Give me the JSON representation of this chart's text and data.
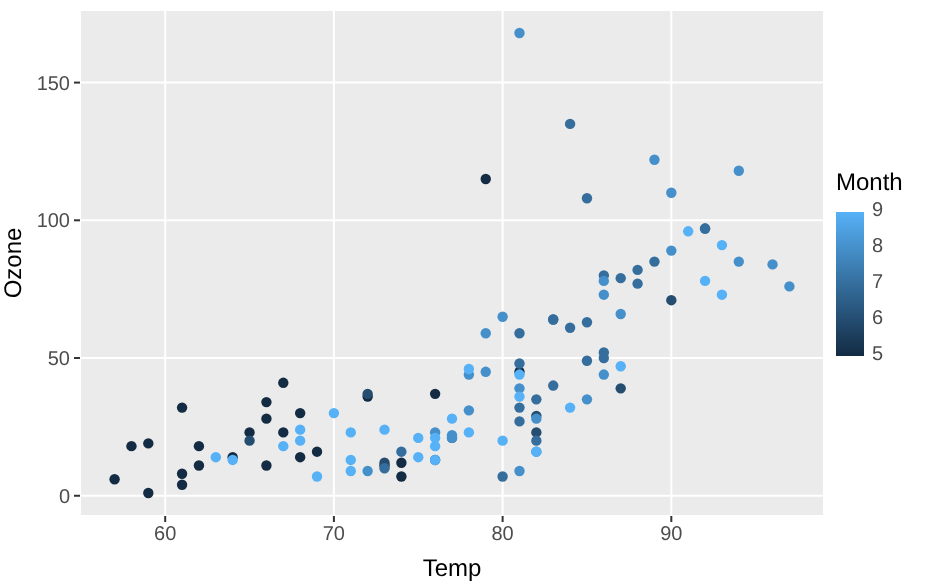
{
  "chart_data": {
    "type": "scatter",
    "xlabel": "Temp",
    "ylabel": "Ozone",
    "clabel": "Month",
    "x": [
      67,
      72,
      74,
      62,
      66,
      65,
      59,
      61,
      74,
      69,
      66,
      68,
      58,
      64,
      66,
      57,
      68,
      62,
      59,
      73,
      61,
      61,
      67,
      81,
      79,
      76,
      82,
      90,
      87,
      82,
      77,
      72,
      65,
      73,
      76,
      84,
      85,
      81,
      83,
      83,
      88,
      92,
      92,
      89,
      73,
      81,
      80,
      81,
      82,
      84,
      87,
      85,
      74,
      86,
      85,
      82,
      86,
      88,
      86,
      83,
      81,
      81,
      81,
      82,
      86,
      85,
      87,
      89,
      90,
      90,
      86,
      82,
      80,
      77,
      79,
      76,
      78,
      78,
      77,
      72,
      79,
      81,
      86,
      97,
      94,
      96,
      94,
      91,
      92,
      93,
      93,
      87,
      84,
      80,
      78,
      75,
      73,
      81,
      76,
      77,
      71,
      71,
      78,
      67,
      76,
      68,
      82,
      64,
      71,
      81,
      69,
      63,
      70,
      75,
      76,
      68
    ],
    "values": [
      41,
      36,
      12,
      18,
      28,
      23,
      19,
      8,
      7,
      16,
      11,
      14,
      18,
      14,
      34,
      6,
      30,
      11,
      1,
      11,
      4,
      32,
      23,
      45,
      115,
      37,
      29,
      71,
      39,
      23,
      21,
      37,
      20,
      12,
      13,
      135,
      49,
      32,
      64,
      40,
      77,
      97,
      97,
      85,
      10,
      27,
      7,
      48,
      35,
      61,
      79,
      63,
      16,
      80,
      108,
      20,
      52,
      82,
      50,
      64,
      59,
      39,
      9,
      16,
      78,
      35,
      66,
      122,
      89,
      110,
      44,
      28,
      65,
      22,
      59,
      23,
      31,
      44,
      21,
      9,
      45,
      168,
      73,
      76,
      118,
      84,
      85,
      96,
      78,
      73,
      91,
      47,
      32,
      20,
      23,
      21,
      24,
      44,
      21,
      28,
      9,
      13,
      46,
      18,
      13,
      24,
      16,
      13,
      23,
      36,
      7,
      14,
      30,
      14,
      18,
      20
    ],
    "cvalues": [
      5,
      5,
      5,
      5,
      5,
      5,
      5,
      5,
      5,
      5,
      5,
      5,
      5,
      5,
      5,
      5,
      5,
      5,
      5,
      5,
      5,
      5,
      5,
      5,
      5,
      5,
      6,
      6,
      6,
      6,
      6,
      6,
      6,
      6,
      6,
      7,
      7,
      7,
      7,
      7,
      7,
      7,
      7,
      7,
      7,
      7,
      7,
      7,
      7,
      7,
      7,
      7,
      7,
      7,
      7,
      7,
      7,
      7,
      7,
      7,
      7,
      8,
      8,
      8,
      8,
      8,
      8,
      8,
      8,
      8,
      8,
      8,
      8,
      8,
      8,
      8,
      8,
      8,
      8,
      8,
      8,
      8,
      8,
      8,
      8,
      8,
      8,
      9,
      9,
      9,
      9,
      9,
      9,
      9,
      9,
      9,
      9,
      9,
      9,
      9,
      9,
      9,
      9,
      9,
      9,
      9,
      9,
      9,
      9,
      9,
      9,
      9,
      9,
      9,
      9,
      9
    ],
    "xlim": [
      54.95,
      99.05
    ],
    "xticks": [
      60,
      70,
      80,
      90
    ],
    "ylim": [
      -7.35,
      176.35
    ],
    "yticks": [
      0,
      50,
      100,
      150
    ],
    "clim": [
      5,
      9
    ],
    "cticks": [
      5,
      6,
      7,
      8,
      9
    ],
    "grid": true,
    "marker": "circle"
  }
}
